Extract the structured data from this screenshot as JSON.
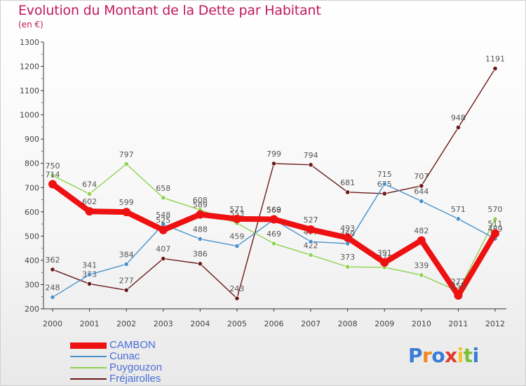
{
  "header": {
    "title": "Evolution du Montant de la Dette par Habitant",
    "subtitle": "(en €)"
  },
  "logo": {
    "text": "Proxiti",
    "letters": [
      "P",
      "r",
      "o",
      "x",
      "i",
      "t",
      "i"
    ],
    "colors": [
      "#3a7bd5",
      "#f08a1c",
      "#3a7bd5",
      "#e03b2e",
      "#f2c230",
      "#7cbf3a",
      "#3a7bd5"
    ]
  },
  "chart_data": {
    "type": "line",
    "title": "Evolution du Montant de la Dette par Habitant",
    "subtitle": "(en €)",
    "xlabel": "",
    "ylabel": "",
    "categories": [
      "2000",
      "2001",
      "2002",
      "2003",
      "2004",
      "2005",
      "2006",
      "2007",
      "2008",
      "2009",
      "2010",
      "2011",
      "2012"
    ],
    "ylim": [
      200,
      1300
    ],
    "yticks": [
      200,
      300,
      400,
      500,
      600,
      700,
      800,
      900,
      1000,
      1100,
      1200,
      1300
    ],
    "grid": false,
    "legend_position": "bottom-left",
    "series": [
      {
        "name": "Fréjairolles",
        "color": "#6b1a1a",
        "values": [
          362,
          303,
          277,
          407,
          386,
          243,
          799,
          794,
          681,
          675,
          707,
          948,
          1191
        ]
      },
      {
        "name": "Puygouzon",
        "color": "#8fd14f",
        "values": [
          750,
          674,
          797,
          658,
          608,
          553,
          469,
          422,
          373,
          371,
          339,
          272,
          570
        ]
      },
      {
        "name": "Cunac",
        "color": "#4a90c8",
        "values": [
          248,
          341,
          384,
          548,
          488,
          459,
          568,
          477,
          469,
          715,
          644,
          571,
          489
        ]
      },
      {
        "name": "CAMBON",
        "color": "#ee1111",
        "values": [
          714,
          602,
          599,
          525,
          589,
          571,
          569,
          527,
          493,
          391,
          482,
          255,
          511
        ]
      }
    ],
    "legend_order": [
      "CAMBON",
      "Cunac",
      "Puygouzon",
      "Fréjairolles"
    ]
  }
}
